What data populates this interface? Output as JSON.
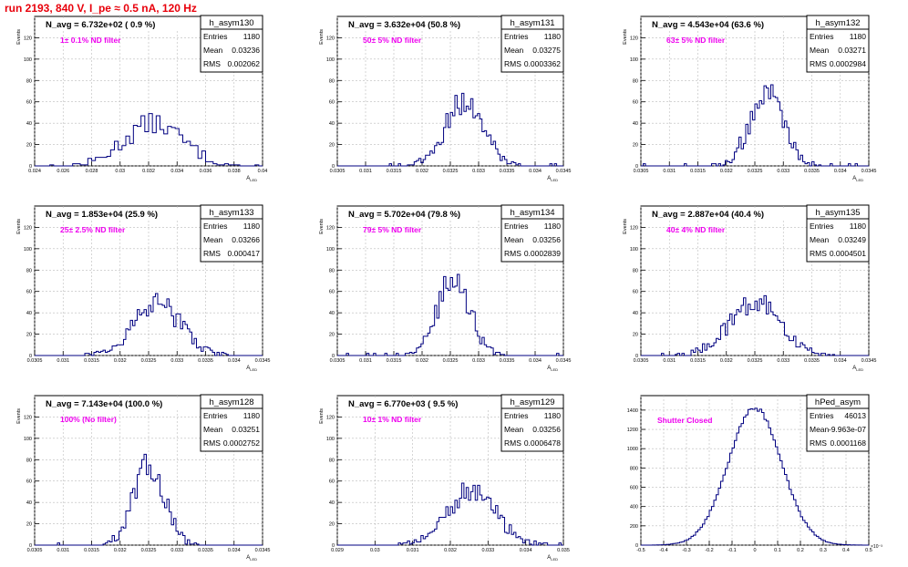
{
  "page_title": "run 2193,   840 V, I_pe ≈ 0.5 nA, 120 Hz",
  "colors": {
    "hist": "#000080",
    "title": "#e8000b",
    "annotation": "#ee00ee"
  },
  "chart_data": [
    {
      "type": "histogram",
      "name": "h_asym130",
      "avg_label": "N_avg = 6.732e+02 ( 0.9 %)",
      "annotation": "1± 0.1% ND filter",
      "entries": "1180",
      "mean": "0.03236",
      "rms": "0.002062",
      "ylabel": "Events",
      "xlabel": "A_LED",
      "xlim": [
        0.024,
        0.04
      ],
      "ylim": [
        0,
        140
      ],
      "xticks": [
        "0.024",
        "0.026",
        "0.028",
        "0.03",
        "0.032",
        "0.034",
        "0.036",
        "0.038",
        "0.04"
      ],
      "yticks": [
        "0",
        "20",
        "40",
        "60",
        "80",
        "100",
        "120"
      ],
      "mu": 0.03236,
      "sigma": 0.002062,
      "peak": 40,
      "bins": 60
    },
    {
      "type": "histogram",
      "name": "h_asym131",
      "avg_label": "N_avg = 3.632e+04 (50.8 %)",
      "annotation": "50± 5% ND filter",
      "entries": "1180",
      "mean": "0.03275",
      "rms": "0.0003362",
      "ylabel": "Events",
      "xlabel": "A_LED",
      "xlim": [
        0.0305,
        0.0345
      ],
      "ylim": [
        0,
        140
      ],
      "xticks": [
        "0.0305",
        "0.031",
        "0.0315",
        "0.032",
        "0.0325",
        "0.033",
        "0.0335",
        "0.034",
        "0.0345"
      ],
      "yticks": [
        "0",
        "20",
        "40",
        "60",
        "80",
        "100",
        "120"
      ],
      "mu": 0.03275,
      "sigma": 0.0003362,
      "peak": 60,
      "bins": 100
    },
    {
      "type": "histogram",
      "name": "h_asym132",
      "avg_label": "N_avg = 4.543e+04 (63.6 %)",
      "annotation": "63± 5% ND filter",
      "entries": "1180",
      "mean": "0.03271",
      "rms": "0.0002984",
      "ylabel": "Events",
      "xlabel": "A_LED",
      "xlim": [
        0.0305,
        0.0345
      ],
      "ylim": [
        0,
        140
      ],
      "xticks": [
        "0.0305",
        "0.031",
        "0.0315",
        "0.032",
        "0.0325",
        "0.033",
        "0.0335",
        "0.034",
        "0.0345"
      ],
      "yticks": [
        "0",
        "20",
        "40",
        "60",
        "80",
        "100",
        "120"
      ],
      "mu": 0.03271,
      "sigma": 0.0002984,
      "peak": 68,
      "bins": 100
    },
    {
      "type": "histogram",
      "name": "h_asym133",
      "avg_label": "N_avg = 1.853e+04 (25.9 %)",
      "annotation": "25± 2.5% ND filter",
      "entries": "1180",
      "mean": "0.03266",
      "rms": "0.000417",
      "ylabel": "Events",
      "xlabel": "A_LED",
      "xlim": [
        0.0305,
        0.0345
      ],
      "ylim": [
        0,
        140
      ],
      "xticks": [
        "0.0305",
        "0.031",
        "0.0315",
        "0.032",
        "0.0325",
        "0.033",
        "0.0335",
        "0.034",
        "0.0345"
      ],
      "yticks": [
        "0",
        "20",
        "40",
        "60",
        "80",
        "100",
        "120"
      ],
      "mu": 0.03266,
      "sigma": 0.000417,
      "peak": 48,
      "bins": 100
    },
    {
      "type": "histogram",
      "name": "h_asym134",
      "avg_label": "N_avg = 5.702e+04 (79.8 %)",
      "annotation": "79± 5% ND filter",
      "entries": "1180",
      "mean": "0.03256",
      "rms": "0.0002839",
      "ylabel": "Events",
      "xlabel": "A_LED",
      "xlim": [
        0.0305,
        0.0345
      ],
      "ylim": [
        0,
        140
      ],
      "xticks": [
        "0.0305",
        "0.031",
        "0.0315",
        "0.032",
        "0.0325",
        "0.033",
        "0.0335",
        "0.034",
        "0.0345"
      ],
      "yticks": [
        "0",
        "20",
        "40",
        "60",
        "80",
        "100",
        "120"
      ],
      "mu": 0.03256,
      "sigma": 0.0002839,
      "peak": 72,
      "bins": 100
    },
    {
      "type": "histogram",
      "name": "h_asym135",
      "avg_label": "N_avg = 2.887e+04 (40.4 %)",
      "annotation": "40± 4% ND filter",
      "entries": "1180",
      "mean": "0.03249",
      "rms": "0.0004501",
      "ylabel": "Events",
      "xlabel": "A_LED",
      "xlim": [
        0.0305,
        0.0345
      ],
      "ylim": [
        0,
        140
      ],
      "xticks": [
        "0.0305",
        "0.031",
        "0.0315",
        "0.032",
        "0.0325",
        "0.033",
        "0.0335",
        "0.034",
        "0.0345"
      ],
      "yticks": [
        "0",
        "20",
        "40",
        "60",
        "80",
        "100",
        "120"
      ],
      "mu": 0.03249,
      "sigma": 0.0004501,
      "peak": 50,
      "bins": 100
    },
    {
      "type": "histogram",
      "name": "h_asym128",
      "avg_label": "N_avg = 7.143e+04 (100.0 %)",
      "annotation": "100% (No filter)",
      "entries": "1180",
      "mean": "0.03251",
      "rms": "0.0002752",
      "ylabel": "Events",
      "xlabel": "A_LED",
      "xlim": [
        0.0305,
        0.0345
      ],
      "ylim": [
        0,
        140
      ],
      "xticks": [
        "0.0305",
        "0.031",
        "0.0315",
        "0.032",
        "0.0325",
        "0.033",
        "0.0335",
        "0.034",
        "0.0345"
      ],
      "yticks": [
        "0",
        "20",
        "40",
        "60",
        "80",
        "100",
        "120"
      ],
      "mu": 0.03251,
      "sigma": 0.0002752,
      "peak": 74,
      "bins": 100
    },
    {
      "type": "histogram",
      "name": "h_asym129",
      "avg_label": "N_avg = 6.770e+03 ( 9.5 %)",
      "annotation": "10± 1% ND filter",
      "entries": "1180",
      "mean": "0.03256",
      "rms": "0.0006478",
      "ylabel": "Events",
      "xlabel": "A_LED",
      "xlim": [
        0.029,
        0.035
      ],
      "ylim": [
        0,
        140
      ],
      "xticks": [
        "0.029",
        "0.03",
        "0.031",
        "0.032",
        "0.033",
        "0.034",
        "0.035"
      ],
      "yticks": [
        "0",
        "20",
        "40",
        "60",
        "80",
        "100",
        "120"
      ],
      "mu": 0.03256,
      "sigma": 0.0006478,
      "peak": 50,
      "bins": 100
    },
    {
      "type": "histogram",
      "name": "hPed_asym",
      "avg_label": "",
      "annotation": "Shutter Closed",
      "entries": "46013",
      "mean": "-9.963e-07",
      "rms": "0.0001168",
      "ylabel": "",
      "xlabel": "",
      "xscale_label": "×10⁻³",
      "xlim": [
        -0.5,
        0.5
      ],
      "ylim": [
        0,
        1550
      ],
      "xticks": [
        "-0.5",
        "-0.4",
        "-0.3",
        "-0.2",
        "-0.1",
        "0",
        "0.1",
        "0.2",
        "0.3",
        "0.4",
        "0.5"
      ],
      "yticks": [
        "0",
        "200",
        "400",
        "600",
        "800",
        "1000",
        "1200",
        "1400"
      ],
      "mu": 0,
      "sigma": 0.1168,
      "peak": 1420,
      "bins": 100
    }
  ]
}
